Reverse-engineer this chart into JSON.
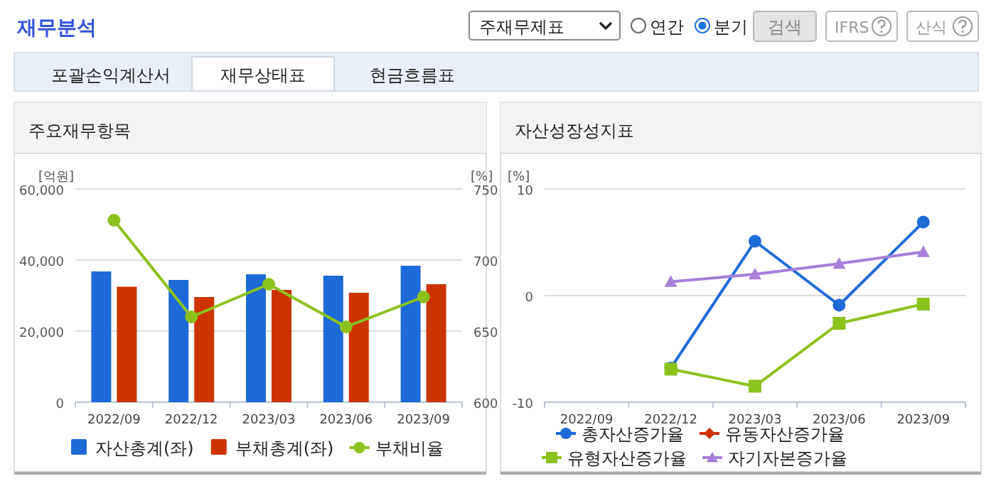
{
  "chart_data": [
    {
      "type": "other",
      "title": "재무분석",
      "annotations": [
        "주재무제표",
        "연간",
        "분기",
        "검색",
        "IFRS",
        "산식",
        "포괄손익계산서",
        "재무상태표",
        "현금흐름표"
      ]
    },
    {
      "type": "bar",
      "title": "주요재무항목",
      "categories": [
        "2022/09",
        "2022/12",
        "2023/03",
        "2023/06",
        "2023/09"
      ],
      "ylabel": "[억원]",
      "y2label": "[%]",
      "ylim": [
        0,
        60000
      ],
      "yticks": [
        0,
        {
          "value": 20000,
          "label": "20,000"
        },
        {
          "value": 40000,
          "label": "40,000"
        },
        {
          "value": 60000,
          "label": "60,000"
        }
      ],
      "y2lim": [
        600,
        750
      ],
      "y2ticks": [
        600,
        650,
        700,
        750
      ],
      "grid": "y",
      "legend": "bottom",
      "series": [
        {
          "name": "자산총계(좌)",
          "color": "#1f6ad9",
          "values": [
            36800,
            34400,
            36000,
            35600,
            38400
          ]
        },
        {
          "name": "부채총계(좌)",
          "color": "#cc3300",
          "values": [
            32500,
            29600,
            31600,
            30800,
            33200
          ]
        },
        {
          "name": "부채비율",
          "type": "line",
          "axis": "y2",
          "marker": "circle",
          "color": "#8cc21c",
          "values": [
            728,
            660,
            683,
            653,
            674
          ]
        }
      ]
    },
    {
      "type": "line",
      "title": "자산성장성지표",
      "categories": [
        "2022/09",
        "2022/12",
        "2023/03",
        "2023/06",
        "2023/09"
      ],
      "ylabel": "[%]",
      "ylim": [
        -10,
        10
      ],
      "yticks": [
        -10,
        0,
        10
      ],
      "grid": "y",
      "legend": "bottom",
      "series": [
        {
          "name": "총자산증가율",
          "marker": "circle",
          "color": "#1f6ad9",
          "values": [
            null,
            -6.8,
            5.1,
            -0.9,
            6.9
          ]
        },
        {
          "name": "유동자산증가율",
          "marker": "diamond",
          "color": "#cc3300",
          "values": [
            null,
            null,
            null,
            null,
            null
          ]
        },
        {
          "name": "유형자산증가율",
          "marker": "square",
          "color": "#8cc21c",
          "values": [
            null,
            -6.9,
            -8.5,
            -2.6,
            -0.8
          ]
        },
        {
          "name": "자기자본증가율",
          "marker": "triangle",
          "color": "#a77fd9",
          "values": [
            null,
            1.3,
            2.0,
            3.0,
            4.1
          ]
        }
      ]
    }
  ]
}
